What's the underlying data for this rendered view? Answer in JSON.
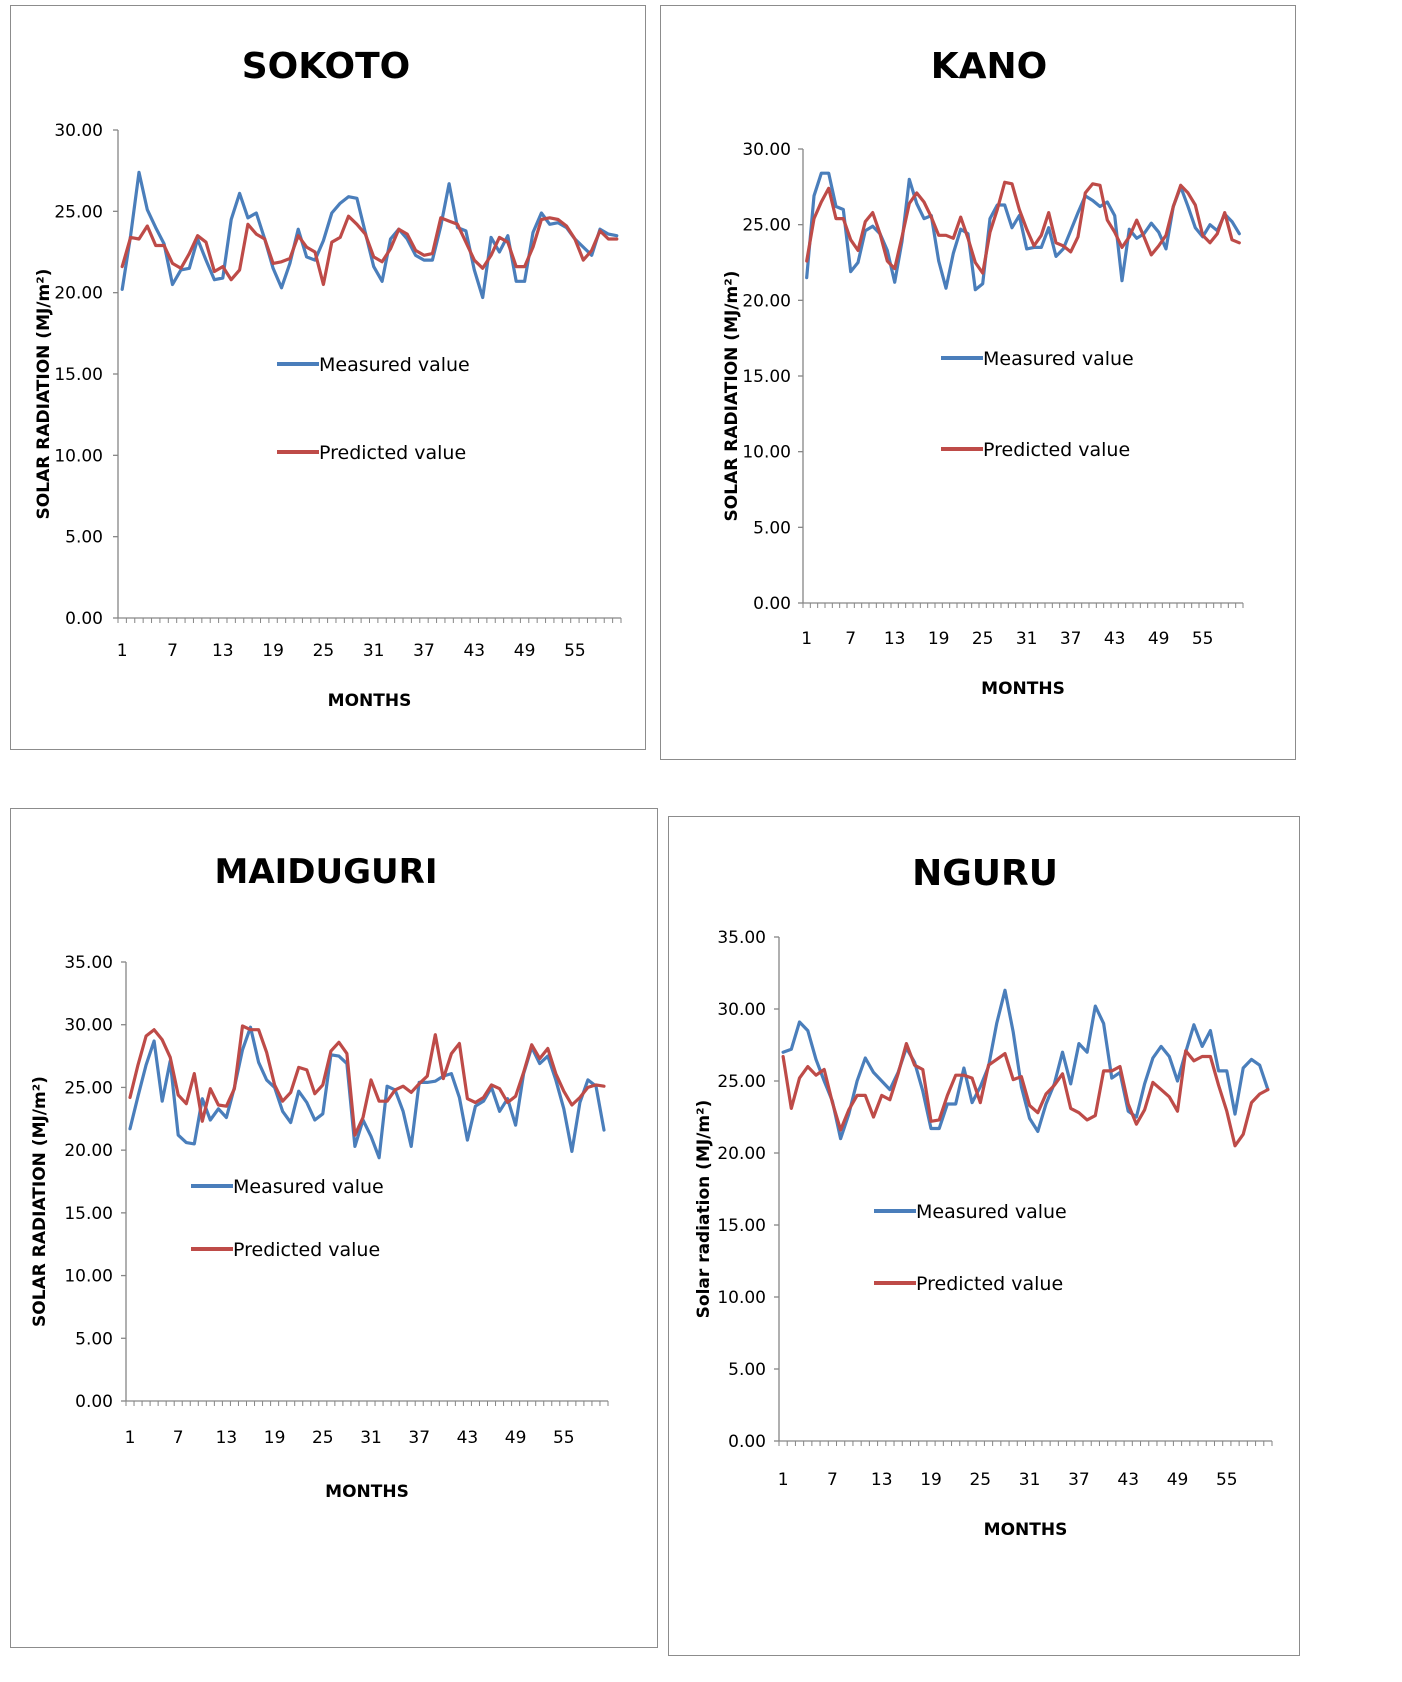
{
  "colors": {
    "measured": "#4a7ebb",
    "predicted": "#be4b48",
    "axis": "#868686"
  },
  "chart_data": [
    {
      "type": "line",
      "title": "SOKOTO",
      "xlabel": "MONTHS",
      "ylabel": "SOLAR RADIATION  (MJ/m²)",
      "ylim": [
        0,
        30
      ],
      "yticks": [
        "0.00",
        "5.00",
        "10.00",
        "15.00",
        "20.00",
        "25.00",
        "30.00"
      ],
      "ytick_values": [
        0,
        5,
        10,
        15,
        20,
        25,
        30
      ],
      "xticks": [
        "1",
        "7",
        "13",
        "19",
        "25",
        "31",
        "37",
        "43",
        "49",
        "55"
      ],
      "x_count": 60,
      "legend": "inside-center",
      "series": [
        {
          "name": "Measured value",
          "color": "#4a7ebb",
          "values": [
            20.2,
            23.5,
            27.4,
            25.1,
            24.0,
            23.0,
            20.5,
            21.4,
            21.5,
            23.3,
            22.0,
            20.8,
            20.9,
            24.5,
            26.1,
            24.6,
            24.9,
            23.3,
            21.5,
            20.3,
            21.8,
            23.9,
            22.2,
            22.0,
            23.2,
            24.9,
            25.5,
            25.9,
            25.8,
            23.7,
            21.6,
            20.7,
            23.3,
            23.9,
            23.3,
            22.3,
            22.0,
            22.0,
            24.1,
            26.7,
            24.0,
            23.8,
            21.4,
            19.7,
            23.4,
            22.5,
            23.5,
            20.7,
            20.7,
            23.7,
            24.9,
            24.2,
            24.3,
            24.0,
            23.3,
            22.8,
            22.3,
            23.9,
            23.6,
            23.5
          ]
        },
        {
          "name": "Predicted value",
          "color": "#be4b48",
          "values": [
            21.6,
            23.4,
            23.3,
            24.1,
            22.9,
            22.9,
            21.8,
            21.5,
            22.4,
            23.5,
            23.1,
            21.3,
            21.6,
            20.8,
            21.4,
            24.2,
            23.6,
            23.3,
            21.8,
            21.9,
            22.1,
            23.5,
            22.8,
            22.5,
            20.5,
            23.1,
            23.4,
            24.7,
            24.2,
            23.6,
            22.2,
            21.9,
            22.7,
            23.9,
            23.6,
            22.6,
            22.3,
            22.4,
            24.6,
            24.4,
            24.2,
            23.1,
            22.0,
            21.5,
            22.3,
            23.4,
            23.1,
            21.6,
            21.6,
            22.8,
            24.5,
            24.6,
            24.5,
            24.1,
            23.3,
            22.0,
            22.6,
            23.8,
            23.3,
            23.3
          ]
        }
      ]
    },
    {
      "type": "line",
      "title": "KANO",
      "xlabel": "MONTHS",
      "ylabel": "SOLAR RADIATION  (MJ/m²)",
      "ylim": [
        0,
        30
      ],
      "yticks": [
        "0.00",
        "5.00",
        "10.00",
        "15.00",
        "20.00",
        "25.00",
        "30.00"
      ],
      "ytick_values": [
        0,
        5,
        10,
        15,
        20,
        25,
        30
      ],
      "xticks": [
        "1",
        "7",
        "13",
        "19",
        "25",
        "31",
        "37",
        "43",
        "49",
        "55"
      ],
      "x_count": 60,
      "legend": "inside-center",
      "series": [
        {
          "name": "Measured value",
          "color": "#4a7ebb",
          "values": [
            21.5,
            26.9,
            28.4,
            28.4,
            26.2,
            26.0,
            21.9,
            22.5,
            24.6,
            24.9,
            24.4,
            23.3,
            21.2,
            23.9,
            28.0,
            26.4,
            25.4,
            25.6,
            22.6,
            20.8,
            23.1,
            24.7,
            24.4,
            20.7,
            21.1,
            25.4,
            26.3,
            26.3,
            24.8,
            25.6,
            23.4,
            23.5,
            23.5,
            24.8,
            22.9,
            23.4,
            24.6,
            25.8,
            26.9,
            26.6,
            26.2,
            26.5,
            25.6,
            21.3,
            24.7,
            24.1,
            24.4,
            25.1,
            24.5,
            23.4,
            26.2,
            27.5,
            26.2,
            24.8,
            24.2,
            25.0,
            24.6,
            25.7,
            25.2,
            24.4
          ]
        },
        {
          "name": "Predicted value",
          "color": "#be4b48",
          "values": [
            22.6,
            25.4,
            26.5,
            27.4,
            25.4,
            25.4,
            24.0,
            23.3,
            25.2,
            25.8,
            24.4,
            22.6,
            22.1,
            24.2,
            26.4,
            27.1,
            26.5,
            25.5,
            24.3,
            24.3,
            24.1,
            25.5,
            24.1,
            22.5,
            21.8,
            24.5,
            26.0,
            27.8,
            27.7,
            26.0,
            24.7,
            23.6,
            24.3,
            25.8,
            23.8,
            23.6,
            23.2,
            24.2,
            27.1,
            27.7,
            27.6,
            25.3,
            24.5,
            23.5,
            24.2,
            25.3,
            24.2,
            23.0,
            23.6,
            24.3,
            26.2,
            27.6,
            27.1,
            26.3,
            24.3,
            23.8,
            24.4,
            25.8,
            24.0,
            23.8
          ]
        }
      ]
    },
    {
      "type": "line",
      "title": "MAIDUGURI",
      "xlabel": "MONTHS",
      "ylabel": "SOLAR RADIATION (MJ/m²)",
      "ylim": [
        0,
        35
      ],
      "yticks": [
        "0.00",
        "5.00",
        "10.00",
        "15.00",
        "20.00",
        "25.00",
        "30.00",
        "35.00"
      ],
      "ytick_values": [
        0,
        5,
        10,
        15,
        20,
        25,
        30,
        35
      ],
      "xticks": [
        "1",
        "7",
        "13",
        "19",
        "25",
        "31",
        "37",
        "43",
        "49",
        "55"
      ],
      "x_count": 60,
      "legend": "inside-center",
      "series": [
        {
          "name": "Measured value",
          "color": "#4a7ebb",
          "values": [
            21.7,
            24.3,
            26.8,
            28.7,
            23.9,
            27.1,
            21.2,
            20.6,
            20.5,
            24.1,
            22.4,
            23.3,
            22.6,
            25.0,
            28.0,
            29.8,
            27.0,
            25.6,
            25.0,
            23.1,
            22.2,
            24.7,
            23.8,
            22.4,
            22.9,
            27.6,
            27.5,
            26.9,
            20.3,
            22.4,
            21.1,
            19.4,
            25.1,
            24.8,
            23.1,
            20.3,
            25.4,
            25.4,
            25.5,
            25.9,
            26.1,
            24.2,
            20.8,
            23.5,
            23.9,
            25.0,
            23.1,
            24.1,
            22.0,
            26.1,
            28.2,
            26.9,
            27.5,
            25.6,
            23.3,
            19.9,
            23.8,
            25.6,
            25.1,
            21.6
          ]
        },
        {
          "name": "Predicted value",
          "color": "#be4b48",
          "values": [
            24.2,
            26.8,
            29.1,
            29.6,
            28.8,
            27.4,
            24.4,
            23.7,
            26.1,
            22.3,
            24.9,
            23.6,
            23.5,
            24.9,
            29.9,
            29.6,
            29.6,
            27.8,
            25.2,
            23.9,
            24.6,
            26.6,
            26.4,
            24.5,
            25.2,
            27.9,
            28.6,
            27.7,
            21.2,
            22.6,
            25.6,
            23.9,
            23.9,
            24.8,
            25.1,
            24.6,
            25.3,
            25.9,
            29.2,
            25.7,
            27.7,
            28.5,
            24.1,
            23.8,
            24.2,
            25.2,
            24.9,
            23.8,
            24.3,
            26.2,
            28.4,
            27.3,
            28.1,
            26.1,
            24.7,
            23.6,
            24.2,
            25.0,
            25.2,
            25.1
          ]
        }
      ]
    },
    {
      "type": "line",
      "title": "NGURU",
      "xlabel": "MONTHS",
      "ylabel": "Solar radiation  (MJ/m²)",
      "ylim": [
        0,
        35
      ],
      "yticks": [
        "0.00",
        "5.00",
        "10.00",
        "15.00",
        "20.00",
        "25.00",
        "30.00",
        "35.00"
      ],
      "ytick_values": [
        0,
        5,
        10,
        15,
        20,
        25,
        30,
        35
      ],
      "xticks": [
        "1",
        "7",
        "13",
        "19",
        "25",
        "31",
        "37",
        "43",
        "49",
        "55"
      ],
      "x_count": 60,
      "legend": "inside-center",
      "series": [
        {
          "name": "Measured value",
          "color": "#4a7ebb",
          "values": [
            27.0,
            27.2,
            29.1,
            28.5,
            26.5,
            25.0,
            23.6,
            21.0,
            22.7,
            25.0,
            26.6,
            25.6,
            25.0,
            24.4,
            25.6,
            27.3,
            26.3,
            24.3,
            21.7,
            21.7,
            23.4,
            23.4,
            25.9,
            23.5,
            24.6,
            26.0,
            29.0,
            31.3,
            28.4,
            24.6,
            22.4,
            21.5,
            23.4,
            24.8,
            27.0,
            24.8,
            27.6,
            27.0,
            30.2,
            29.0,
            25.2,
            25.6,
            22.9,
            22.5,
            24.8,
            26.6,
            27.4,
            26.7,
            25.0,
            27.0,
            28.9,
            27.4,
            28.5,
            25.7,
            25.7,
            22.7,
            25.9,
            26.5,
            26.1,
            24.4
          ]
        },
        {
          "name": "Predicted value",
          "color": "#be4b48",
          "values": [
            26.7,
            23.1,
            25.2,
            26.0,
            25.4,
            25.8,
            23.5,
            21.6,
            23.0,
            24.0,
            24.0,
            22.5,
            24.0,
            23.7,
            25.5,
            27.6,
            26.1,
            25.8,
            22.2,
            22.3,
            24.0,
            25.4,
            25.4,
            25.2,
            23.5,
            26.1,
            26.5,
            26.9,
            25.1,
            25.3,
            23.3,
            22.8,
            24.1,
            24.7,
            25.5,
            23.1,
            22.8,
            22.3,
            22.6,
            25.7,
            25.7,
            26.0,
            23.4,
            22.0,
            23.0,
            24.9,
            24.4,
            23.9,
            22.9,
            27.1,
            26.4,
            26.7,
            26.7,
            24.7,
            22.9,
            20.5,
            21.3,
            23.5,
            24.1,
            24.4
          ]
        }
      ]
    }
  ]
}
